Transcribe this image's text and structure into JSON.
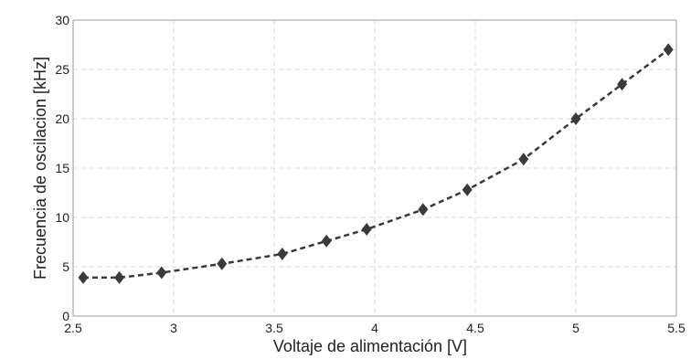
{
  "chart_data": {
    "type": "line",
    "title": "",
    "xlabel": "Voltaje  de alimentación [V]",
    "ylabel": "Frecuencia de oscilacion [kHz]",
    "xlim": [
      2.5,
      5.5
    ],
    "ylim": [
      0,
      30
    ],
    "x_ticks": [
      2.5,
      3,
      3.5,
      4,
      4.5,
      5,
      5.5
    ],
    "x_tick_labels": [
      "2.5",
      "3",
      "3.5",
      "4",
      "4.5",
      "5",
      "5.5"
    ],
    "y_ticks": [
      0,
      5,
      10,
      15,
      20,
      25,
      30
    ],
    "y_tick_labels": [
      "0",
      "5",
      "10",
      "15",
      "20",
      "25",
      "30"
    ],
    "grid": true,
    "legend": "none",
    "series": [
      {
        "line_style": "dashed",
        "marker": "diamond",
        "color": "#3a3a3a",
        "x": [
          2.55,
          2.73,
          2.94,
          3.24,
          3.54,
          3.76,
          3.96,
          4.24,
          4.46,
          4.74,
          5.0,
          5.23,
          5.46
        ],
        "y": [
          3.9,
          3.9,
          4.4,
          5.3,
          6.3,
          7.6,
          8.8,
          10.8,
          12.8,
          15.9,
          20.0,
          23.5,
          27.0
        ]
      }
    ]
  }
}
